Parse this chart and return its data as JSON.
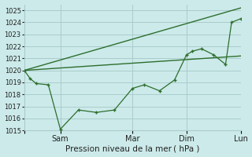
{
  "title": "",
  "xlabel": "Pression niveau de la mer ( hPa )",
  "ylabel": "",
  "bg_color": "#cceaea",
  "grid_color": "#aacccc",
  "line_color": "#2d6e2d",
  "ylim": [
    1015,
    1025.5
  ],
  "xlim": [
    0,
    144
  ],
  "xtick_positions": [
    0,
    24,
    72,
    108,
    144
  ],
  "xtick_labels": [
    "",
    "Sam",
    "Mar",
    "Dim",
    "Lun"
  ],
  "ytick_positions": [
    1015,
    1016,
    1017,
    1018,
    1019,
    1020,
    1021,
    1022,
    1023,
    1024,
    1025
  ],
  "vline_positions": [
    0,
    24,
    72,
    108,
    144
  ],
  "line1_x": [
    0,
    144
  ],
  "line1_y": [
    1020.0,
    1025.2
  ],
  "line2_x": [
    0,
    144
  ],
  "line2_y": [
    1020.0,
    1021.2
  ],
  "line3_x": [
    0,
    4,
    8,
    16,
    24,
    36,
    48,
    60,
    72,
    80,
    90,
    100,
    108,
    112,
    118,
    126,
    134,
    138,
    144
  ],
  "line3_y": [
    1020.0,
    1019.3,
    1018.9,
    1018.8,
    1015.1,
    1016.7,
    1016.5,
    1016.7,
    1018.5,
    1018.8,
    1018.3,
    1019.2,
    1021.3,
    1021.6,
    1021.8,
    1021.3,
    1020.5,
    1024.0,
    1024.3
  ],
  "figsize": [
    3.2,
    2.0
  ],
  "dpi": 100
}
